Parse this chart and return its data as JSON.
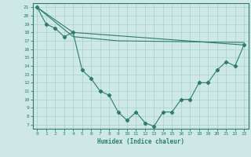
{
  "xlabel": "Humidex (Indice chaleur)",
  "bg_color": "#cde8e5",
  "line_color": "#2d7d6e",
  "grid_color": "#a8d0cc",
  "xlim": [
    -0.5,
    23.5
  ],
  "ylim": [
    6.5,
    21.5
  ],
  "yticks": [
    7,
    8,
    9,
    10,
    11,
    12,
    13,
    14,
    15,
    16,
    17,
    18,
    19,
    20,
    21
  ],
  "xticks": [
    0,
    1,
    2,
    3,
    4,
    5,
    6,
    7,
    8,
    9,
    10,
    11,
    12,
    13,
    14,
    15,
    16,
    17,
    18,
    19,
    20,
    21,
    22,
    23
  ],
  "line1_x": [
    0,
    1,
    2,
    3,
    4,
    5,
    6,
    7,
    8,
    9,
    10,
    11,
    12,
    13,
    14,
    15,
    16,
    17,
    18,
    19,
    20,
    21,
    22,
    23
  ],
  "line1_y": [
    21.0,
    19.0,
    18.5,
    17.5,
    18.0,
    13.5,
    12.5,
    11.0,
    10.5,
    8.5,
    7.5,
    8.5,
    7.2,
    6.8,
    8.5,
    8.5,
    10.0,
    10.0,
    12.0,
    12.0,
    13.5,
    14.5,
    14.0,
    16.5
  ],
  "line2_x": [
    0,
    4,
    23
  ],
  "line2_y": [
    21.0,
    18.0,
    16.5
  ],
  "line3_x": [
    0,
    4,
    9,
    23
  ],
  "line3_y": [
    21.0,
    17.5,
    17.0,
    16.8
  ]
}
